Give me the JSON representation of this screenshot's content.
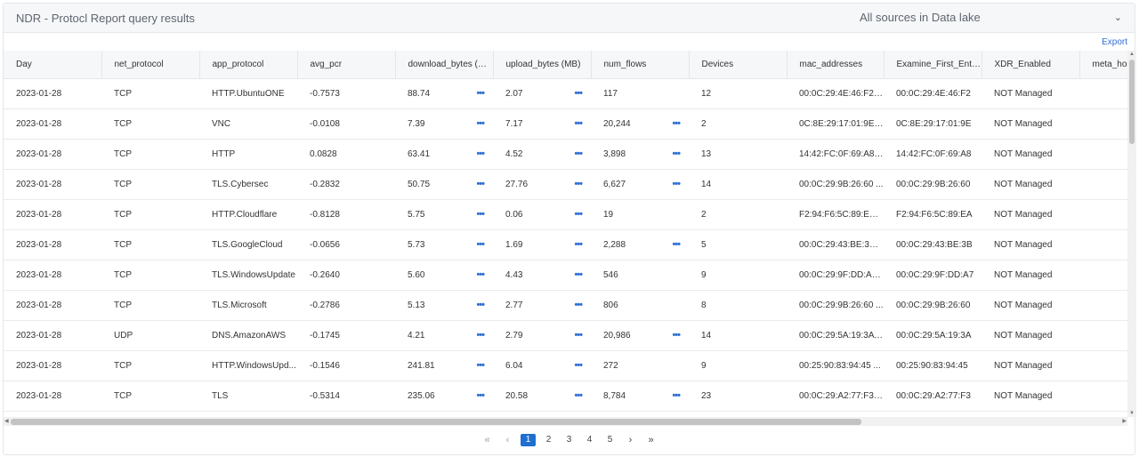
{
  "header": {
    "title": "NDR - Protocl Report query results",
    "source_label": "All sources in Data lake"
  },
  "toolbar": {
    "export_label": "Export"
  },
  "table": {
    "columns": [
      "Day",
      "net_protocol",
      "app_protocol",
      "avg_pcr",
      "download_bytes (MB)",
      "upload_bytes (MB)",
      "num_flows",
      "Devices",
      "mac_addresses",
      "Examine_First_Entry →",
      "XDR_Enabled",
      "meta_hostn"
    ],
    "rows": [
      [
        "2023-01-28",
        "TCP",
        "HTTP.UbuntuONE",
        "-0.7573",
        "88.74",
        "2.07",
        "117",
        "12",
        "00:0C:29:4E:46:F2 ...",
        "00:0C:29:4E:46:F2",
        "NOT Managed",
        ""
      ],
      [
        "2023-01-28",
        "TCP",
        "VNC",
        "-0.0108",
        "7.39",
        "7.17",
        "20,244",
        "2",
        "0C:8E:29:17:01:9E 0...",
        "0C:8E:29:17:01:9E",
        "NOT Managed",
        ""
      ],
      [
        "2023-01-28",
        "TCP",
        "HTTP",
        "0.0828",
        "63.41",
        "4.52",
        "3,898",
        "13",
        "14:42:FC:0F:69:A8 ...",
        "14:42:FC:0F:69:A8",
        "NOT Managed",
        ""
      ],
      [
        "2023-01-28",
        "TCP",
        "TLS.Cybersec",
        "-0.2832",
        "50.75",
        "27.76",
        "6,627",
        "14",
        "00:0C:29:9B:26:60 ...",
        "00:0C:29:9B:26:60",
        "NOT Managed",
        ""
      ],
      [
        "2023-01-28",
        "TCP",
        "HTTP.Cloudflare",
        "-0.8128",
        "5.75",
        "0.06",
        "19",
        "2",
        "F2:94:F6:5C:89:EA ...",
        "F2:94:F6:5C:89:EA",
        "NOT Managed",
        ""
      ],
      [
        "2023-01-28",
        "TCP",
        "TLS.GoogleCloud",
        "-0.0656",
        "5.73",
        "1.69",
        "2,288",
        "5",
        "00:0C:29:43:BE:3B ...",
        "00:0C:29:43:BE:3B",
        "NOT Managed",
        ""
      ],
      [
        "2023-01-28",
        "TCP",
        "TLS.WindowsUpdate",
        "-0.2640",
        "5.60",
        "4.43",
        "546",
        "9",
        "00:0C:29:9F:DD:A7 ...",
        "00:0C:29:9F:DD:A7",
        "NOT Managed",
        ""
      ],
      [
        "2023-01-28",
        "TCP",
        "TLS.Microsoft",
        "-0.2786",
        "5.13",
        "2.77",
        "806",
        "8",
        "00:0C:29:9B:26:60 ...",
        "00:0C:29:9B:26:60",
        "NOT Managed",
        ""
      ],
      [
        "2023-01-28",
        "UDP",
        "DNS.AmazonAWS",
        "-0.1745",
        "4.21",
        "2.79",
        "20,986",
        "14",
        "00:0C:29:5A:19:3A ...",
        "00:0C:29:5A:19:3A",
        "NOT Managed",
        ""
      ],
      [
        "2023-01-28",
        "TCP",
        "HTTP.WindowsUpd...",
        "-0.1546",
        "241.81",
        "6.04",
        "272",
        "9",
        "00:25:90:83:94:45 ...",
        "00:25:90:83:94:45",
        "NOT Managed",
        ""
      ],
      [
        "2023-01-28",
        "TCP",
        "TLS",
        "-0.5314",
        "235.06",
        "20.58",
        "8,784",
        "23",
        "00:0C:29:A2:77:F3 ...",
        "00:0C:29:A2:77:F3",
        "NOT Managed",
        ""
      ]
    ],
    "more_in_flows": [
      false,
      true,
      true,
      true,
      false,
      true,
      false,
      false,
      true,
      false,
      true
    ]
  },
  "pagination": {
    "first": "«",
    "prev": "‹",
    "next": "›",
    "last": "»",
    "pages": [
      "1",
      "2",
      "3",
      "4",
      "5"
    ],
    "current": "1"
  },
  "colors": {
    "accent": "#2f6fd2",
    "header_bg": "#f6f7f9",
    "border": "#e4e6ea"
  }
}
